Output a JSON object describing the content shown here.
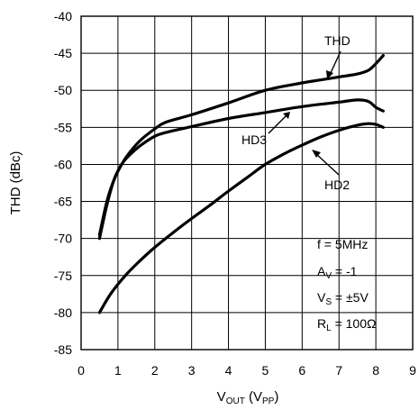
{
  "chart_data": {
    "type": "line",
    "xlabel": "VOUT (VPP)",
    "ylabel": "THD (dBc)",
    "xlim": [
      0,
      9
    ],
    "ylim": [
      -85,
      -40
    ],
    "xticks": [
      "0",
      "1",
      "2",
      "3",
      "4",
      "5",
      "6",
      "7",
      "8",
      "9"
    ],
    "yticks": [
      "-40",
      "-45",
      "-50",
      "-55",
      "-60",
      "-65",
      "-70",
      "-75",
      "-80",
      "-85"
    ],
    "grid": true,
    "series": [
      {
        "name": "THD",
        "x": [
          0.5,
          0.7,
          0.9,
          1.1,
          1.3,
          1.6,
          2.0,
          2.3,
          3.0,
          4.0,
          5.0,
          6.0,
          6.5,
          7.0,
          7.5,
          7.8,
          8.0,
          8.2
        ],
        "y": [
          -69.5,
          -65,
          -62,
          -60,
          -58.5,
          -56.8,
          -55.2,
          -54.3,
          -53.3,
          -51.7,
          -50,
          -49,
          -48.6,
          -48.2,
          -47.8,
          -47.3,
          -46.4,
          -45.3
        ]
      },
      {
        "name": "HD3",
        "x": [
          0.5,
          0.7,
          0.9,
          1.1,
          1.3,
          1.6,
          2.0,
          2.3,
          3.0,
          4.0,
          5.0,
          6.0,
          7.0,
          7.5,
          7.8,
          8.0,
          8.2
        ],
        "y": [
          -70,
          -65.5,
          -62,
          -60,
          -58.8,
          -57.5,
          -56.2,
          -55.7,
          -54.9,
          -53.8,
          -53,
          -52.2,
          -51.6,
          -51.3,
          -51.5,
          -52.3,
          -52.8
        ]
      },
      {
        "name": "HD2",
        "x": [
          0.5,
          0.8,
          1.2,
          1.6,
          2.0,
          2.5,
          3.0,
          3.5,
          4.0,
          4.5,
          5.0,
          5.5,
          6.0,
          6.5,
          7.0,
          7.5,
          7.8,
          8.0,
          8.2
        ],
        "y": [
          -80,
          -77.5,
          -75,
          -73,
          -71.2,
          -69.2,
          -67.3,
          -65.5,
          -63.6,
          -61.8,
          -60,
          -58.6,
          -57.4,
          -56.3,
          -55.4,
          -54.7,
          -54.5,
          -54.6,
          -55
        ]
      }
    ],
    "annotations": [
      "f = 5MHz",
      "AV = -1",
      "VS = ±5V",
      "RL = 100Ω"
    ]
  },
  "labels": {
    "ylabel": "THD (dBc)",
    "xlabel_main": "V",
    "xlabel_sub1": "OUT",
    "xlabel_mid": " (V",
    "xlabel_sub2": "PP",
    "xlabel_end": ")",
    "thd": "THD",
    "hd3": "HD3",
    "hd2": "HD2",
    "cond_f": "f = 5MHz",
    "cond_av_main": "A",
    "cond_av_sub": "V",
    "cond_av_val": " = -1",
    "cond_vs_main": "V",
    "cond_vs_sub": "S",
    "cond_vs_val": " = ±5V",
    "cond_rl_main": "R",
    "cond_rl_sub": "L",
    "cond_rl_val": " = 100Ω"
  }
}
